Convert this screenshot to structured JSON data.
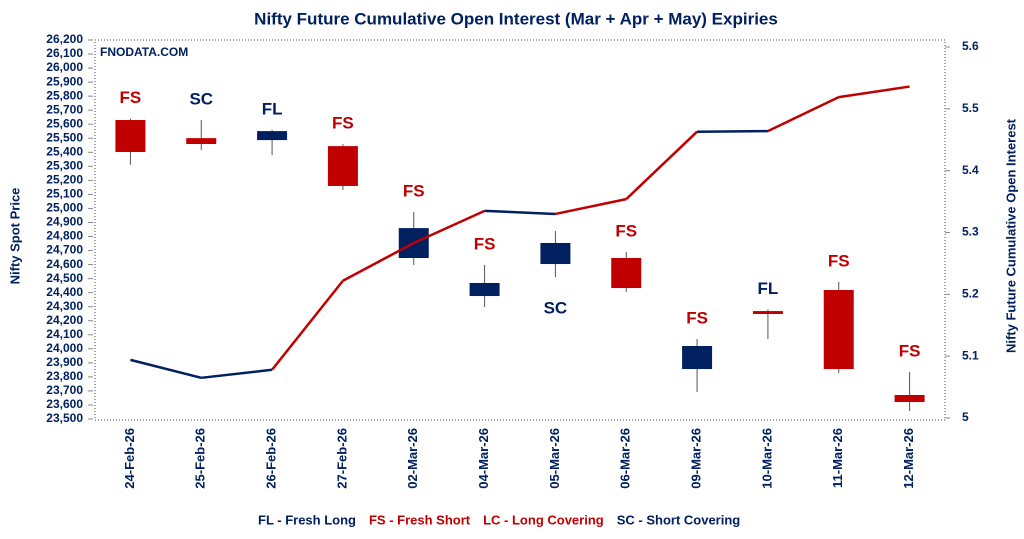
{
  "chart_data": {
    "type": "candlestick-line",
    "title": "Nifty Future Cumulative Open Interest (Mar + Apr + May) Expiries",
    "watermark": "FNODATA.COM",
    "y_label": "Nifty Spot Price",
    "y2_label": "Nifty Future Cumulative Open Interest",
    "categories": [
      "24-Feb-26",
      "25-Feb-26",
      "26-Feb-26",
      "27-Feb-26",
      "02-Mar-26",
      "04-Mar-26",
      "05-Mar-26",
      "06-Mar-26",
      "09-Mar-26",
      "10-Mar-26",
      "11-Mar-26",
      "12-Mar-26"
    ],
    "candles": {
      "open": [
        25630,
        25501,
        25487,
        25444,
        24647,
        24376,
        24604,
        24647,
        23856,
        24269,
        24419,
        23671
      ],
      "high": [
        25640,
        25630,
        25560,
        25458,
        24974,
        24597,
        24839,
        24690,
        24070,
        24280,
        24476,
        23835
      ],
      "low": [
        25310,
        25416,
        25380,
        25131,
        24597,
        24298,
        24511,
        24405,
        23692,
        24070,
        23828,
        23557
      ],
      "close": [
        25402,
        25459,
        25551,
        25160,
        24860,
        24469,
        24754,
        24433,
        24020,
        24248,
        23856,
        23621
      ],
      "up_color": "#002060",
      "down_color": "#c00000"
    },
    "series": [
      {
        "name": "Nifty Future Cumulative Open Interest",
        "axis": "y2",
        "values": [
          5.094,
          5.065,
          5.078,
          5.222,
          5.283,
          5.335,
          5.33,
          5.354,
          5.463,
          5.464,
          5.519,
          5.536
        ],
        "segment_colors": [
          "#002060",
          "#002060",
          "#c00000",
          "#c00000",
          "#c00000",
          "#002060",
          "#c00000",
          "#c00000",
          "#002060",
          "#c00000",
          "#c00000"
        ]
      }
    ],
    "signals": [
      {
        "label": "FS",
        "color": "#c00000"
      },
      {
        "label": "SC",
        "color": "#002060"
      },
      {
        "label": "FL",
        "color": "#002060"
      },
      {
        "label": "FS",
        "color": "#c00000"
      },
      {
        "label": "FS",
        "color": "#c00000"
      },
      {
        "label": "FS",
        "color": "#c00000"
      },
      {
        "label": "SC",
        "color": "#002060"
      },
      {
        "label": "FS",
        "color": "#c00000"
      },
      {
        "label": "FS",
        "color": "#c00000"
      },
      {
        "label": "FL",
        "color": "#002060"
      },
      {
        "label": "FS",
        "color": "#c00000"
      },
      {
        "label": "FS",
        "color": "#c00000"
      }
    ],
    "legend": [
      {
        "text": "FL - Fresh Long",
        "color": "#002060"
      },
      {
        "text": "FS - Fresh Short",
        "color": "#c00000"
      },
      {
        "text": "LC - Long Covering",
        "color": "#c00000"
      },
      {
        "text": "SC - Short Covering",
        "color": "#002060"
      }
    ],
    "ylim": [
      23500,
      26200
    ],
    "yticks": [
      {
        "value": 23500,
        "label": "23,500"
      },
      {
        "value": 23600,
        "label": "23,600"
      },
      {
        "value": 23700,
        "label": "23,700"
      },
      {
        "value": 23800,
        "label": "23,800"
      },
      {
        "value": 23900,
        "label": "23,900"
      },
      {
        "value": 24000,
        "label": "24,000"
      },
      {
        "value": 24100,
        "label": "24,100"
      },
      {
        "value": 24200,
        "label": "24,200"
      },
      {
        "value": 24300,
        "label": "24,300"
      },
      {
        "value": 24400,
        "label": "24,400"
      },
      {
        "value": 24500,
        "label": "24,500"
      },
      {
        "value": 24600,
        "label": "24,600"
      },
      {
        "value": 24700,
        "label": "24,700"
      },
      {
        "value": 24800,
        "label": "24,800"
      },
      {
        "value": 24900,
        "label": "24,900"
      },
      {
        "value": 25000,
        "label": "25,000"
      },
      {
        "value": 25100,
        "label": "25,100"
      },
      {
        "value": 25200,
        "label": "25,200"
      },
      {
        "value": 25300,
        "label": "25,300"
      },
      {
        "value": 25400,
        "label": "25,400"
      },
      {
        "value": 25500,
        "label": "25,500"
      },
      {
        "value": 25600,
        "label": "25,600"
      },
      {
        "value": 25700,
        "label": "25,700"
      },
      {
        "value": 25800,
        "label": "25,800"
      },
      {
        "value": 25900,
        "label": "25,900"
      },
      {
        "value": 26000,
        "label": "26,000"
      },
      {
        "value": 26100,
        "label": "26,100"
      },
      {
        "value": 26200,
        "label": "26,200"
      }
    ],
    "y2lim": [
      5,
      5.6
    ],
    "y2ticks": [
      5,
      5.1,
      5.2,
      5.3,
      5.4,
      5.5,
      5.6
    ],
    "grid": false
  }
}
